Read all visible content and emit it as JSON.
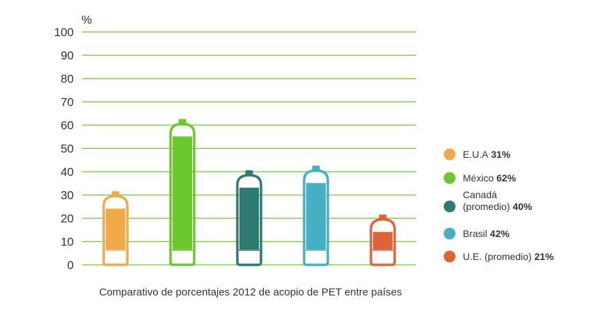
{
  "chart_data": {
    "type": "bar",
    "title": "Comparativo de porcentajes 2012 de acopio de PET entre países",
    "ylabel": "%",
    "xlabel": "",
    "ylim": [
      0,
      100
    ],
    "yticks": [
      "0",
      "10",
      "20",
      "30",
      "40",
      "50",
      "60",
      "70",
      "80",
      "90",
      "100"
    ],
    "grid": true,
    "legend_position": "right",
    "categories": [
      "E.U.A",
      "México",
      "Canadá (promedio)",
      "Brasil",
      "U.E. (promedio)"
    ],
    "values": [
      31,
      62,
      40,
      42,
      21
    ],
    "colors": [
      "#F0A94B",
      "#6CC62E",
      "#2E7A70",
      "#47AFC3",
      "#E0623A"
    ],
    "bottle_icon": "pet-bottle-icon",
    "legend": [
      {
        "label_lines": [
          "E.U.A"
        ],
        "value": "31%"
      },
      {
        "label_lines": [
          "México"
        ],
        "value": "62%"
      },
      {
        "label_lines": [
          "Canadá",
          "(promedio)"
        ],
        "value": "40%"
      },
      {
        "label_lines": [
          "Brasil"
        ],
        "value": "42%"
      },
      {
        "label_lines": [
          "U.E. (promedio)"
        ],
        "value": "21%"
      }
    ]
  },
  "colors": {
    "grid": "#6CC62E",
    "text": "#333333"
  }
}
